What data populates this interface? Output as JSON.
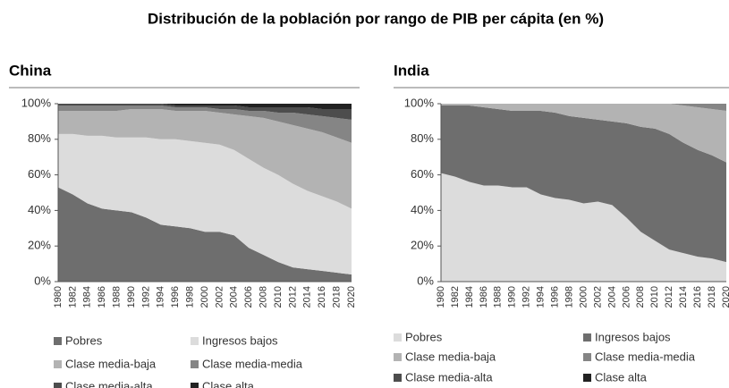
{
  "title": "Distribución de la población por rango de PIB per cápita (en %)",
  "chart_data": [
    {
      "type": "stacked_area",
      "title": "China",
      "categories": [
        "1980",
        "1982",
        "1984",
        "1986",
        "1988",
        "1990",
        "1992",
        "1994",
        "1996",
        "1998",
        "2000",
        "2002",
        "2004",
        "2006",
        "2008",
        "2010",
        "2012",
        "2014",
        "2016",
        "2018",
        "2020"
      ],
      "ylim": [
        0,
        100
      ],
      "yticks": [
        {
          "value": 0,
          "label": "0%"
        },
        {
          "value": 20,
          "label": "20%"
        },
        {
          "value": 40,
          "label": "40%"
        },
        {
          "value": 60,
          "label": "60%"
        },
        {
          "value": 80,
          "label": "80%"
        },
        {
          "value": 100,
          "label": "100%"
        }
      ],
      "series": [
        {
          "name": "Pobres",
          "color": "#6e6e6e",
          "values": [
            53,
            49,
            44,
            41,
            40,
            39,
            36,
            32,
            31,
            30,
            28,
            28,
            26,
            19,
            15,
            11,
            8,
            7,
            6,
            5,
            4
          ]
        },
        {
          "name": "Ingresos bajos",
          "color": "#dcdcdc",
          "values": [
            30,
            34,
            38,
            41,
            41,
            42,
            45,
            48,
            49,
            49,
            50,
            49,
            48,
            50,
            49,
            49,
            47,
            44,
            42,
            40,
            37
          ]
        },
        {
          "name": "Clase media-baja",
          "color": "#b3b3b3",
          "values": [
            13,
            13,
            14,
            14,
            15,
            16,
            16,
            17,
            16,
            17,
            18,
            18,
            20,
            24,
            28,
            30,
            33,
            35,
            36,
            36,
            37
          ]
        },
        {
          "name": "Clase media-media",
          "color": "#858585",
          "values": [
            3,
            3,
            3,
            3,
            3,
            2,
            2,
            2,
            2,
            2,
            2,
            2,
            3,
            3,
            4,
            5,
            7,
            8,
            9,
            11,
            13
          ]
        },
        {
          "name": "Clase media-alta",
          "color": "#4d4d4d",
          "values": [
            1,
            1,
            1,
            1,
            1,
            1,
            1,
            1,
            1,
            1,
            1,
            2,
            2,
            2,
            2,
            3,
            3,
            4,
            4,
            5,
            6
          ]
        },
        {
          "name": "Clase alta",
          "color": "#222222",
          "values": [
            0,
            0,
            0,
            0,
            0,
            0,
            0,
            0,
            1,
            1,
            1,
            1,
            1,
            2,
            2,
            2,
            2,
            2,
            3,
            3,
            3
          ]
        }
      ]
    },
    {
      "type": "stacked_area",
      "title": "India",
      "categories": [
        "1980",
        "1982",
        "1984",
        "1986",
        "1988",
        "1990",
        "1992",
        "1994",
        "1996",
        "1998",
        "2000",
        "2002",
        "2004",
        "2006",
        "2008",
        "2010",
        "2012",
        "2014",
        "2016",
        "2018",
        "2020"
      ],
      "ylim": [
        0,
        100
      ],
      "yticks": [
        {
          "value": 0,
          "label": "0%"
        },
        {
          "value": 20,
          "label": "20%"
        },
        {
          "value": 40,
          "label": "40%"
        },
        {
          "value": 60,
          "label": "60%"
        },
        {
          "value": 80,
          "label": "80%"
        },
        {
          "value": 100,
          "label": "100%"
        }
      ],
      "series": [
        {
          "name": "Pobres",
          "color": "#dcdcdc",
          "values": [
            61,
            59,
            56,
            54,
            54,
            53,
            53,
            49,
            47,
            46,
            44,
            45,
            43,
            36,
            28,
            23,
            18,
            16,
            14,
            13,
            11
          ]
        },
        {
          "name": "Ingresos bajos",
          "color": "#6e6e6e",
          "values": [
            38,
            40,
            43,
            44,
            43,
            43,
            43,
            47,
            48,
            47,
            48,
            46,
            47,
            53,
            59,
            63,
            65,
            62,
            60,
            58,
            56
          ]
        },
        {
          "name": "Clase media-baja",
          "color": "#b3b3b3",
          "values": [
            1,
            1,
            1,
            2,
            3,
            4,
            4,
            4,
            5,
            7,
            8,
            9,
            10,
            11,
            13,
            14,
            17,
            21,
            24,
            26,
            29
          ]
        },
        {
          "name": "Clase media-media",
          "color": "#858585",
          "values": [
            0,
            0,
            0,
            0,
            0,
            0,
            0,
            0,
            0,
            0,
            0,
            0,
            0,
            0,
            0,
            0,
            0,
            1,
            2,
            3,
            4
          ]
        },
        {
          "name": "Clase media-alta",
          "color": "#4d4d4d",
          "values": [
            0,
            0,
            0,
            0,
            0,
            0,
            0,
            0,
            0,
            0,
            0,
            0,
            0,
            0,
            0,
            0,
            0,
            0,
            0,
            0,
            0
          ]
        },
        {
          "name": "Clase alta",
          "color": "#222222",
          "values": [
            0,
            0,
            0,
            0,
            0,
            0,
            0,
            0,
            0,
            0,
            0,
            0,
            0,
            0,
            0,
            0,
            0,
            0,
            0,
            0,
            0
          ]
        }
      ]
    }
  ]
}
